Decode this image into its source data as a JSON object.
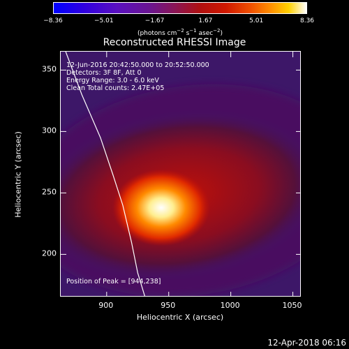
{
  "colorbar": {
    "ticks": [
      "−8.36",
      "−5.01",
      "−1.67",
      "1.67",
      "5.01",
      "8.36"
    ],
    "unit_main": "(photons cm",
    "unit_sup1": "−2",
    "unit_mid1": " s",
    "unit_sup2": "−1",
    "unit_mid2": " asec",
    "unit_sup3": "−2",
    "unit_end": ")",
    "min": -8.36,
    "max": 8.36
  },
  "title": "Reconstructed RHESSI Image",
  "annotations": {
    "time_range": "12-Jun-2016 20:42:50.000 to 20:52:50.000",
    "detectors": "Detectors: 3F 8F, Att 0",
    "energy": "Energy Range: 3.0 - 6.0 keV",
    "clean": "Clean    Total counts: 2.47E+05",
    "peak": "Position of Peak = [944,238]"
  },
  "footer": {
    "timestamp": "12-Apr-2018 06:16"
  },
  "colors": {
    "background": "#000000",
    "text": "#ffffff",
    "halo": "#3d1768",
    "core": "#ffffff"
  },
  "chart_data": {
    "type": "heatmap",
    "title": "Reconstructed RHESSI Image",
    "xlabel": "Heliocentric X (arcsec)",
    "ylabel": "Heliocentric Y (arcsec)",
    "xlim": [
      863,
      1057
    ],
    "ylim": [
      165,
      365
    ],
    "x_ticks": [
      900,
      950,
      1000,
      1050
    ],
    "y_ticks": [
      200,
      250,
      300,
      350
    ],
    "peak": [
      944,
      238
    ],
    "limb_curve": [
      [
        867,
        365
      ],
      [
        880,
        330
      ],
      [
        895,
        295
      ],
      [
        905,
        265
      ],
      [
        913,
        240
      ],
      [
        920,
        210
      ],
      [
        925,
        185
      ],
      [
        931,
        165
      ]
    ]
  }
}
